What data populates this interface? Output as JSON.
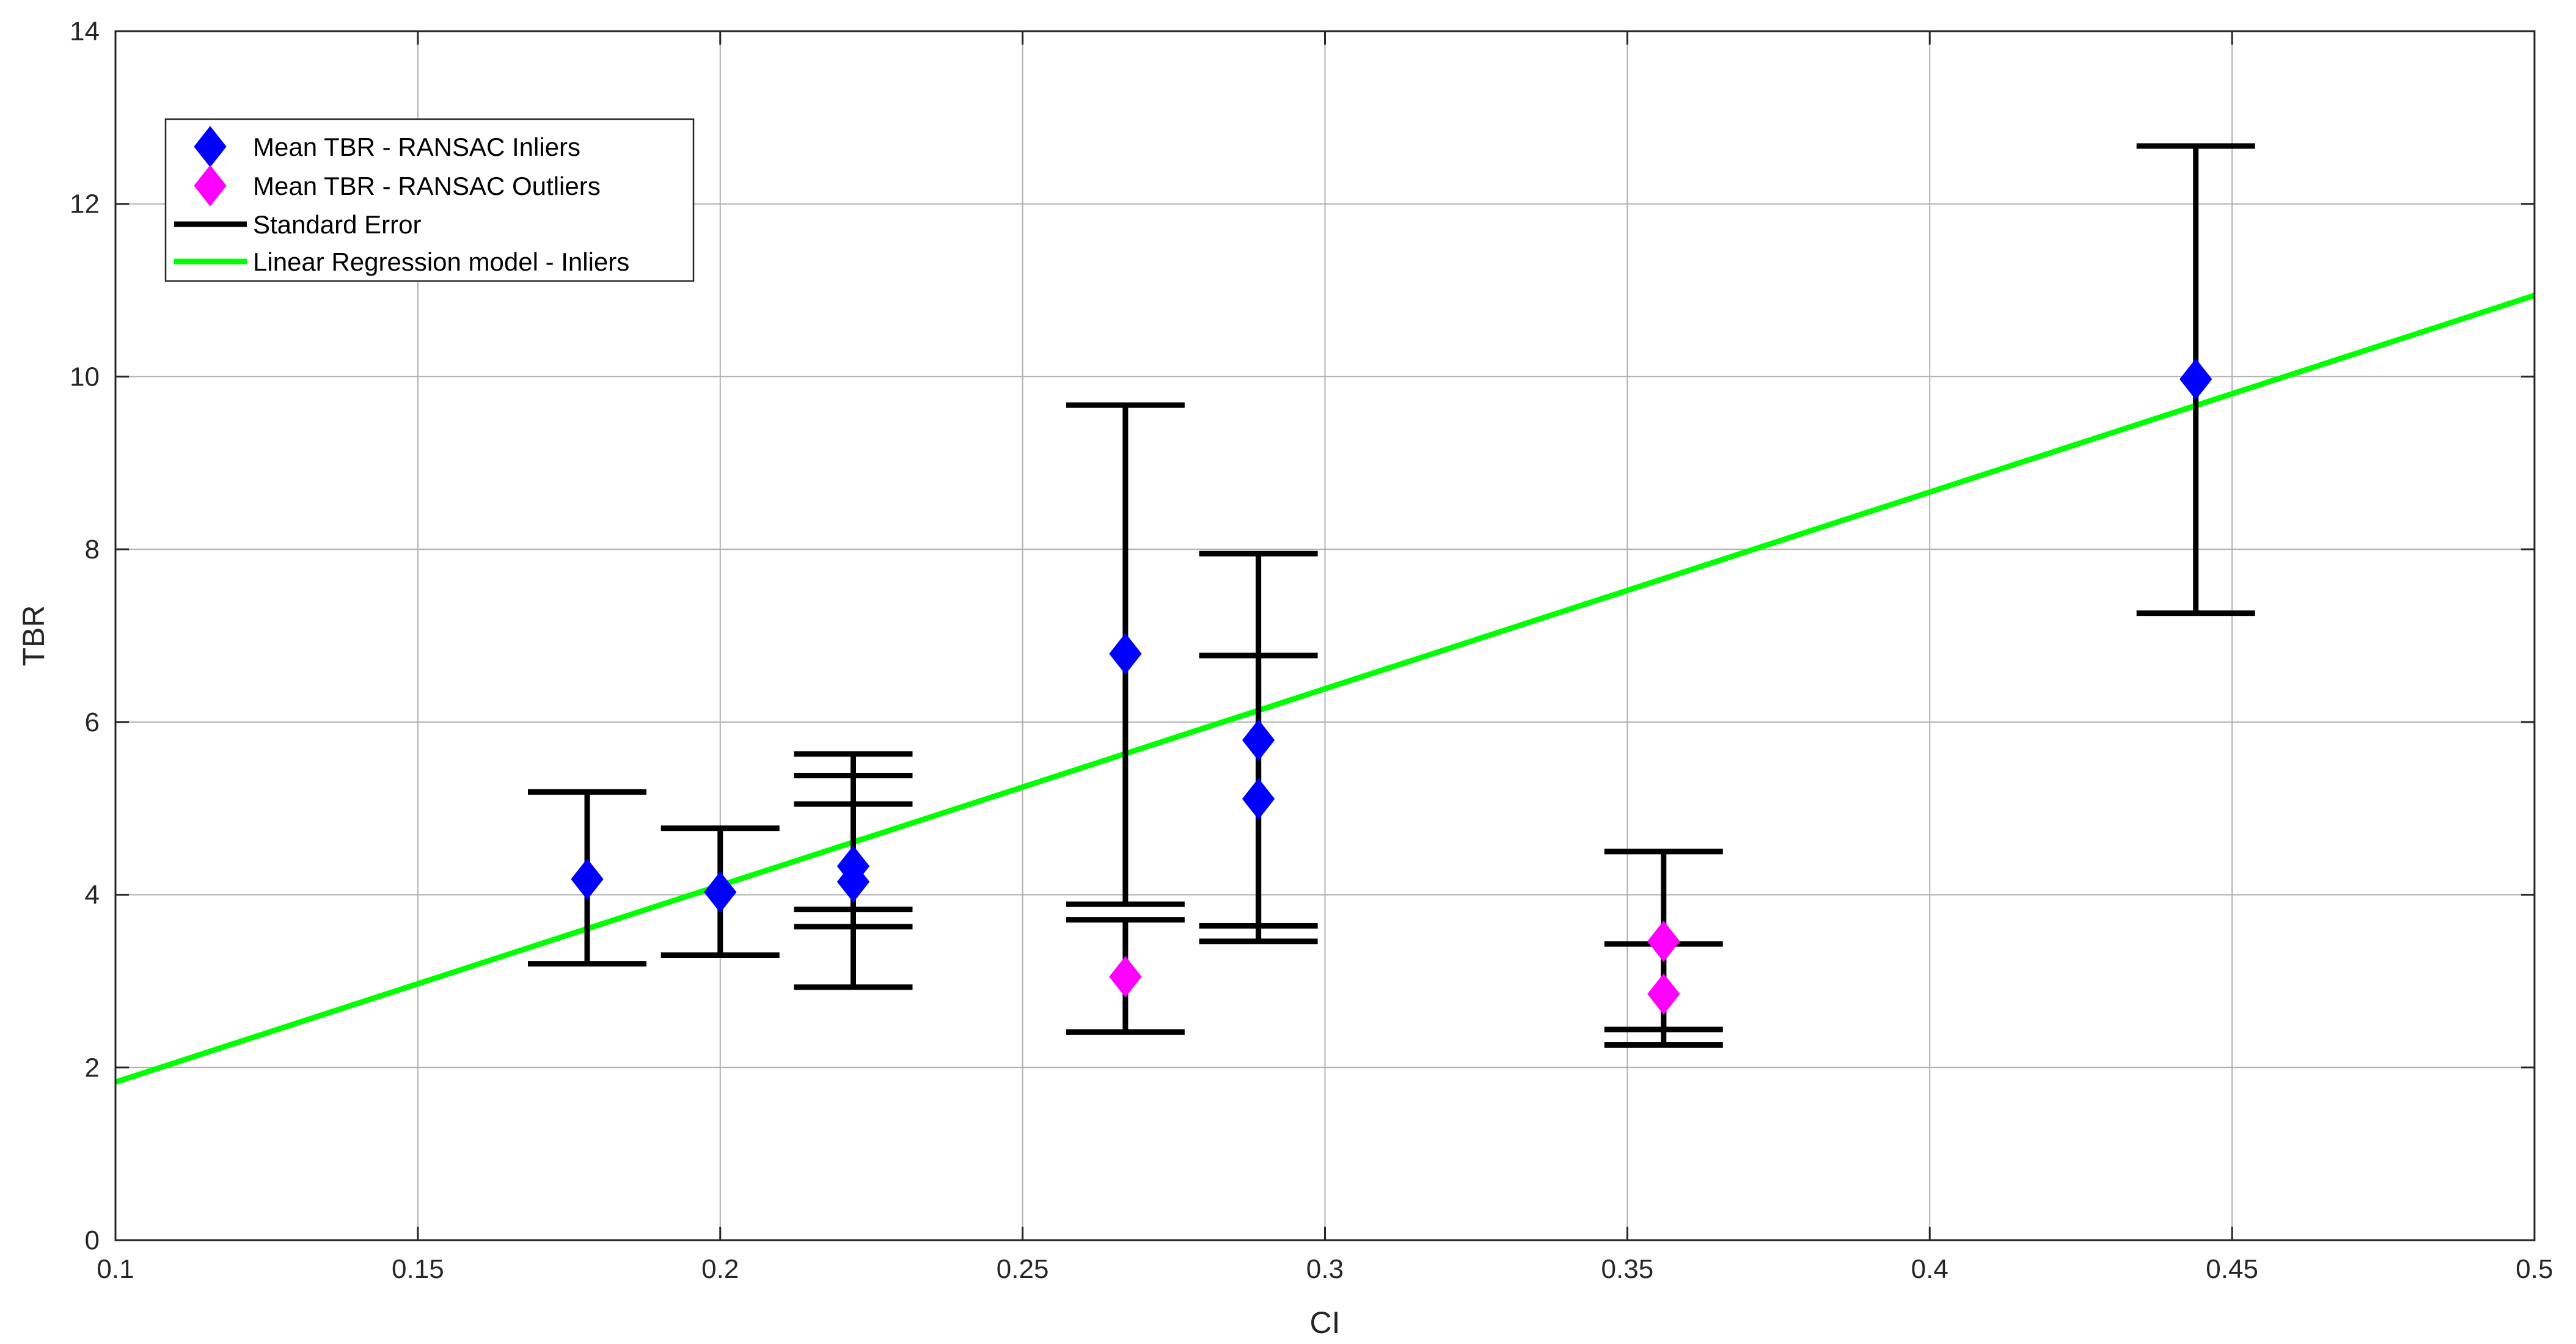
{
  "chart_data": {
    "type": "scatter",
    "xlabel": "CI",
    "ylabel": "TBR",
    "xlim": [
      0.1,
      0.5
    ],
    "ylim": [
      0,
      14
    ],
    "x_ticks": [
      0.1,
      0.15,
      0.2,
      0.25,
      0.3,
      0.35,
      0.4,
      0.45,
      0.5
    ],
    "y_ticks": [
      0,
      2,
      4,
      6,
      8,
      10,
      12,
      14
    ],
    "x_tick_labels": [
      "0.1",
      "0.15",
      "0.2",
      "0.25",
      "0.3",
      "0.35",
      "0.4",
      "0.45",
      "0.5"
    ],
    "y_tick_labels": [
      "0",
      "2",
      "4",
      "6",
      "8",
      "10",
      "12",
      "14"
    ],
    "grid": true,
    "legend_position": "top-left",
    "series": [
      {
        "name": "Mean TBR - RANSAC Inliers",
        "kind": "marker",
        "marker": "diamond",
        "color": "#0000ff",
        "points": [
          {
            "x": 0.178,
            "y": 4.18
          },
          {
            "x": 0.2,
            "y": 4.03
          },
          {
            "x": 0.222,
            "y": 4.33
          },
          {
            "x": 0.222,
            "y": 4.15
          },
          {
            "x": 0.267,
            "y": 6.79
          },
          {
            "x": 0.289,
            "y": 5.79
          },
          {
            "x": 0.289,
            "y": 5.11
          },
          {
            "x": 0.444,
            "y": 9.97
          }
        ]
      },
      {
        "name": "Mean TBR - RANSAC Outliers",
        "kind": "marker",
        "marker": "diamond",
        "color": "#ff00ff",
        "points": [
          {
            "x": 0.267,
            "y": 3.05
          },
          {
            "x": 0.356,
            "y": 3.46
          },
          {
            "x": 0.356,
            "y": 2.85
          }
        ]
      },
      {
        "name": "Standard Error",
        "kind": "errorbar",
        "color": "#000000",
        "bars": [
          {
            "x": 0.178,
            "low": 3.2,
            "high": 5.19
          },
          {
            "x": 0.2,
            "low": 3.3,
            "high": 4.77
          },
          {
            "x": 0.222,
            "low": 3.83,
            "high": 5.05
          },
          {
            "x": 0.222,
            "low": 3.63,
            "high": 5.38
          },
          {
            "x": 0.222,
            "low": 2.93,
            "high": 5.63
          },
          {
            "x": 0.267,
            "low": 3.89,
            "high": 9.67
          },
          {
            "x": 0.267,
            "low": 2.41,
            "high": 3.71
          },
          {
            "x": 0.289,
            "low": 3.64,
            "high": 7.95
          },
          {
            "x": 0.289,
            "low": 3.46,
            "high": 6.77
          },
          {
            "x": 0.356,
            "low": 2.44,
            "high": 4.5
          },
          {
            "x": 0.356,
            "low": 2.26,
            "high": 3.43
          },
          {
            "x": 0.444,
            "low": 7.26,
            "high": 12.67
          }
        ]
      },
      {
        "name": "Linear Regression model - Inliers",
        "kind": "line",
        "color": "#00ff00",
        "points": [
          {
            "x": 0.1,
            "y": 1.83
          },
          {
            "x": 0.5,
            "y": 10.94
          }
        ]
      }
    ]
  }
}
